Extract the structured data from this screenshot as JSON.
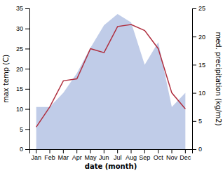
{
  "chart_data": {
    "type": "line",
    "categories": [
      "Jan",
      "Feb",
      "Mar",
      "Apr",
      "May",
      "Jun",
      "Jul",
      "Aug",
      "Sep",
      "Oct",
      "Nov",
      "Dec"
    ],
    "series": [
      {
        "type": "area",
        "axis": "y2",
        "color": "#c0cce8",
        "values": [
          7.5,
          7.5,
          10.0,
          13.5,
          18.0,
          22.0,
          24.0,
          22.5,
          15.0,
          19.0,
          7.5,
          10.0
        ]
      },
      {
        "type": "line",
        "color": "#b03040",
        "values": [
          5.5,
          10.5,
          17.0,
          17.5,
          25.0,
          24.0,
          30.5,
          31.0,
          29.5,
          25.0,
          14.0,
          10.0
        ]
      }
    ],
    "xlabel": "date (month)",
    "ylabel": "max temp (C)",
    "y2label": "med. precipitation (kg/m2)",
    "ylim": [
      0,
      35
    ],
    "yticks": [
      0,
      5,
      10,
      15,
      20,
      25,
      30,
      35
    ],
    "y2lim": [
      0,
      25
    ],
    "y2ticks": [
      0,
      5,
      10,
      15,
      20,
      25
    ],
    "grid": false
  }
}
